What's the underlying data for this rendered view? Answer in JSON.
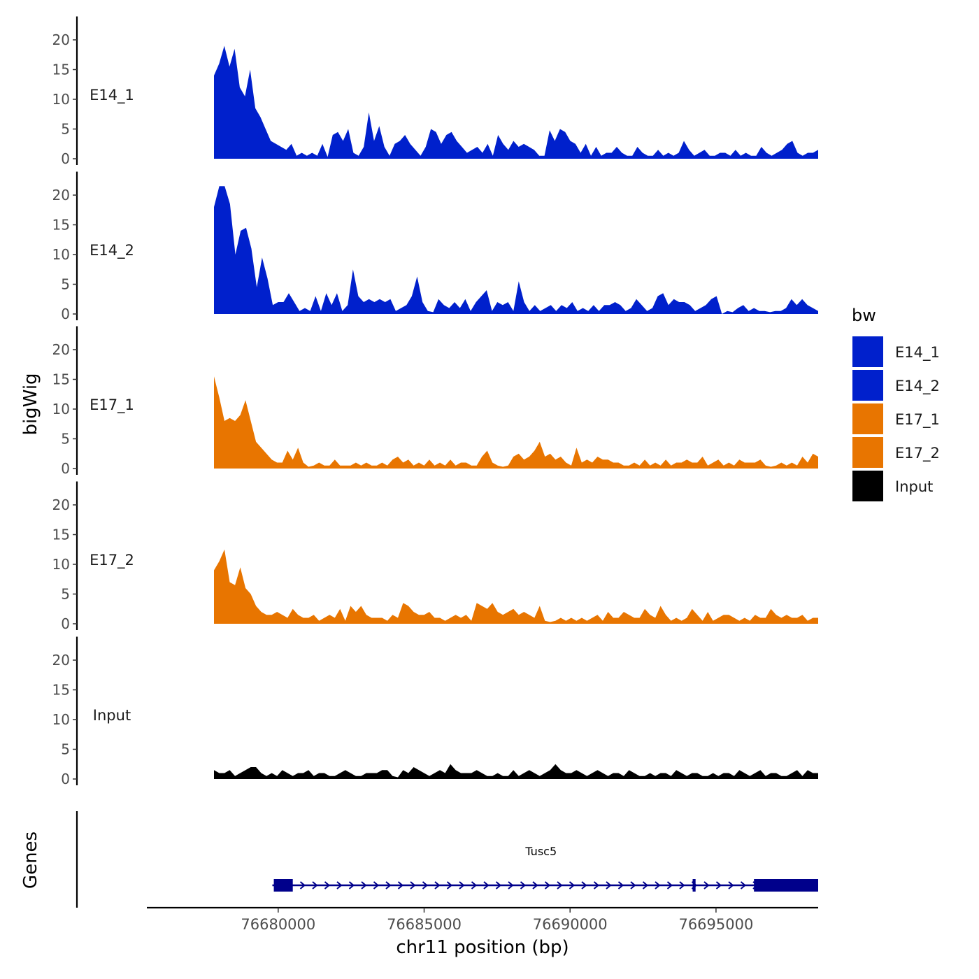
{
  "chart_data": {
    "type": "area",
    "title": "",
    "ylabel": "bigWig",
    "xlabel": "chr11 position (bp)",
    "ylim": [
      0,
      23
    ],
    "yticks": [
      0,
      5,
      10,
      15,
      20
    ],
    "xlim": [
      76675500,
      76698500
    ],
    "xticks": [
      76680000,
      76685000,
      76690000,
      76695000
    ],
    "x_start": 76677800,
    "x_end": 76698500,
    "legend": {
      "title": "bw",
      "position": "right",
      "entries": [
        {
          "label": "E14_1",
          "color": "#0020CC"
        },
        {
          "label": "E14_2",
          "color": "#0020CC"
        },
        {
          "label": "E17_1",
          "color": "#E87500"
        },
        {
          "label": "E17_2",
          "color": "#E87500"
        },
        {
          "label": "Input",
          "color": "#000000"
        }
      ]
    },
    "series": [
      {
        "name": "E14_1",
        "color": "#0020CC",
        "values": [
          14,
          16,
          19,
          15.5,
          18.5,
          12,
          10.5,
          15,
          8.5,
          7,
          5,
          3,
          2.5,
          2,
          1.5,
          2.5,
          0.5,
          1,
          0.5,
          1,
          0.5,
          2.5,
          0.3,
          4,
          4.5,
          3,
          5,
          1,
          0.5,
          2,
          7.8,
          3,
          5.5,
          2,
          0.5,
          2.5,
          3,
          4,
          2.5,
          1.5,
          0.5,
          2,
          5,
          4.5,
          2.5,
          4,
          4.5,
          3,
          2,
          1,
          1.5,
          2,
          1,
          2.5,
          0.5,
          4,
          2.5,
          1.5,
          3,
          2,
          2.5,
          2,
          1.5,
          0.5,
          0.5,
          4.8,
          3,
          5,
          4.5,
          3,
          2.5,
          1,
          2.5,
          0.5,
          2,
          0.5,
          1,
          1,
          2,
          1,
          0.5,
          0.5,
          2,
          1,
          0.5,
          0.5,
          1.5,
          0.5,
          1,
          0.5,
          1,
          3,
          1.5,
          0.5,
          1,
          1.5,
          0.5,
          0.5,
          1,
          1,
          0.5,
          1.5,
          0.5,
          1,
          0.5,
          0.5,
          2,
          1,
          0.5,
          1,
          1.5,
          2.5,
          3,
          1,
          0.5,
          1,
          1,
          1.5
        ]
      },
      {
        "name": "E14_2",
        "color": "#0020CC",
        "values": [
          18,
          21.5,
          21.5,
          18.5,
          10,
          14,
          14.5,
          11,
          4.5,
          9.5,
          6,
          1.5,
          2,
          2,
          3.5,
          2,
          0.5,
          1,
          0.5,
          3,
          0.5,
          3.5,
          1.5,
          3.5,
          0.5,
          1.5,
          7.5,
          3,
          2,
          2.5,
          2,
          2.5,
          2,
          2.5,
          0.5,
          1,
          1.5,
          3,
          6.3,
          2,
          0.5,
          0.3,
          2.5,
          1.5,
          1,
          2,
          1,
          2.5,
          0.5,
          2,
          3,
          4,
          0.5,
          2,
          1.5,
          2,
          0.5,
          5.5,
          2,
          0.5,
          1.5,
          0.5,
          1,
          1.5,
          0.5,
          1.5,
          1,
          2,
          0.5,
          1,
          0.5,
          1.5,
          0.5,
          1.5,
          1.5,
          2,
          1.5,
          0.5,
          1,
          2.5,
          1.5,
          0.5,
          1,
          3,
          3.5,
          1.5,
          2.5,
          2,
          2,
          1.5,
          0.5,
          1,
          1.5,
          2.5,
          3,
          0,
          0.5,
          0.3,
          1,
          1.5,
          0.5,
          1,
          0.5,
          0.5,
          0.3,
          0.5,
          0.5,
          1,
          2.5,
          1.5,
          2.5,
          1.5,
          1,
          0.5
        ]
      },
      {
        "name": "E17_1",
        "color": "#E87500",
        "values": [
          15.5,
          12,
          8,
          8.5,
          8,
          9,
          11.5,
          8,
          4.5,
          3.5,
          2.5,
          1.5,
          1,
          1,
          3,
          1.5,
          3.5,
          1,
          0.3,
          0.5,
          1,
          0.5,
          0.5,
          1.5,
          0.5,
          0.5,
          0.5,
          1,
          0.5,
          1,
          0.5,
          0.5,
          1,
          0.5,
          1.5,
          2,
          1,
          1.5,
          0.5,
          1,
          0.5,
          1.5,
          0.5,
          1,
          0.5,
          1.5,
          0.5,
          1,
          1,
          0.5,
          0.5,
          2,
          3,
          1,
          0.5,
          0.3,
          0.5,
          2,
          2.5,
          1.5,
          2,
          3,
          4.5,
          2,
          2.5,
          1.5,
          2,
          1,
          0.5,
          3.5,
          1,
          1.5,
          1,
          2,
          1.5,
          1.5,
          1,
          1,
          0.5,
          0.5,
          1,
          0.5,
          1.5,
          0.5,
          1,
          0.5,
          1.5,
          0.5,
          1,
          1,
          1.5,
          1,
          1,
          2,
          0.5,
          1,
          1.5,
          0.5,
          1,
          0.5,
          1.5,
          1,
          1,
          1,
          1.5,
          0.5,
          0.3,
          0.5,
          1,
          0.5,
          1,
          0.5,
          2,
          1,
          2.5,
          2
        ]
      },
      {
        "name": "E17_2",
        "color": "#E87500",
        "values": [
          9,
          10.5,
          12.5,
          7,
          6.5,
          9.5,
          6,
          5,
          3,
          2,
          1.5,
          1.5,
          2,
          1.5,
          1,
          2.5,
          1.5,
          1,
          1,
          1.5,
          0.5,
          1,
          1.5,
          1,
          2.5,
          0.5,
          3,
          2,
          3,
          1.5,
          1,
          1,
          1,
          0.5,
          1.5,
          1,
          3.5,
          3,
          2,
          1.5,
          1.5,
          2,
          1,
          1,
          0.5,
          1,
          1.5,
          1,
          1.5,
          0.5,
          3.5,
          3,
          2.5,
          3.5,
          2,
          1.5,
          2,
          2.5,
          1.5,
          2,
          1.5,
          1,
          3,
          0.5,
          0.3,
          0.5,
          1,
          0.5,
          1,
          0.5,
          1,
          0.5,
          1,
          1.5,
          0.5,
          2,
          1,
          1,
          2,
          1.5,
          1,
          1,
          2.5,
          1.5,
          1,
          3,
          1.5,
          0.5,
          1,
          0.5,
          1,
          2.5,
          1.5,
          0.5,
          2,
          0.5,
          1,
          1.5,
          1.5,
          1,
          0.5,
          1,
          0.5,
          1.5,
          1,
          1,
          2.5,
          1.5,
          1,
          1.5,
          1,
          1,
          1.5,
          0.5,
          1,
          1
        ]
      },
      {
        "name": "Input",
        "color": "#000000",
        "values": [
          1.5,
          1,
          1,
          1.5,
          0.5,
          1,
          1.5,
          2,
          2,
          1,
          0.5,
          1,
          0.5,
          1.5,
          1,
          0.5,
          1,
          1,
          1.5,
          0.5,
          1,
          1,
          0.5,
          0.5,
          1,
          1.5,
          1,
          0.5,
          0.5,
          1,
          1,
          1,
          1.5,
          1.5,
          0.5,
          0.3,
          1.5,
          1,
          2,
          1.5,
          1,
          0.5,
          1,
          1.5,
          1,
          2.5,
          1.5,
          1,
          1,
          1,
          1.5,
          1,
          0.5,
          0.5,
          1,
          0.5,
          0.5,
          1.5,
          0.5,
          1,
          1.5,
          1,
          0.5,
          1,
          1.5,
          2.5,
          1.5,
          1,
          1,
          1.5,
          1,
          0.5,
          1,
          1.5,
          1,
          0.5,
          1,
          1,
          0.5,
          1.5,
          1,
          0.5,
          0.5,
          1,
          0.5,
          1,
          1,
          0.5,
          1.5,
          1,
          0.5,
          1,
          1,
          0.5,
          0.5,
          1,
          0.5,
          1,
          1,
          0.5,
          1.5,
          1,
          0.5,
          1,
          1.5,
          0.5,
          1,
          1,
          0.5,
          0.5,
          1,
          1.5,
          0.5,
          1.5,
          1,
          1
        ]
      }
    ],
    "genes": {
      "ylabel": "Genes",
      "items": [
        {
          "name": "Tusc5",
          "start": 76679800,
          "end": 76698500,
          "strand": "+",
          "exons": [
            [
              76679850,
              76680500
            ],
            [
              76694200,
              76694300
            ],
            [
              76696300,
              76698500
            ]
          ]
        }
      ]
    }
  }
}
